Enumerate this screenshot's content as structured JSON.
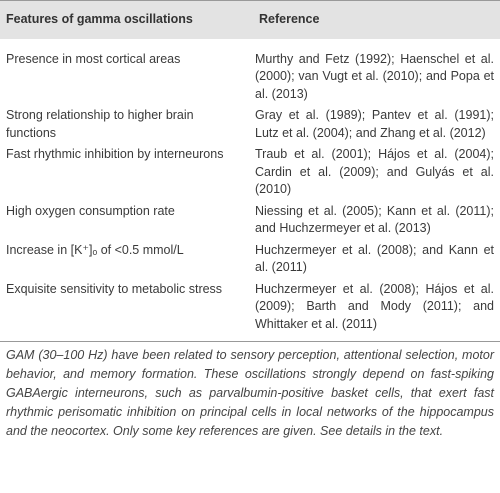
{
  "table": {
    "header": [
      "Features of gamma oscillations",
      "Reference"
    ],
    "rows": [
      [
        "Presence in most cortical areas",
        "Murthy and Fetz (1992); Haenschel et al. (2000); van Vugt et al. (2010); and Popa et al. (2013)"
      ],
      [
        "Strong relationship to higher brain functions",
        "Gray et al. (1989); Pantev et al. (1991); Lutz et al. (2004); and Zhang et al. (2012)"
      ],
      [
        "Fast rhythmic inhibition by interneurons",
        "Traub et al. (2001); Hájos et al. (2004); Cardin et al. (2009); and Gulyás et al. (2010)"
      ],
      [
        "High oxygen consumption rate",
        "Niessing et al. (2005); Kann et al. (2011); and Huchzermeyer et al. (2013)"
      ],
      [
        "Increase in [K⁺]ₒ of <0.5 mmol/L",
        "Huchzermeyer et al. (2008); and Kann et al. (2011)"
      ],
      [
        "Exquisite sensitivity to metabolic stress",
        "Huchzermeyer et al. (2008); Hájos et al. (2009); Barth and Mody (2011); and Whittaker et al. (2011)"
      ]
    ]
  },
  "footnote": "GAM (30–100 Hz) have been related to sensory perception, attentional selection, motor behavior, and memory formation. These oscillations strongly depend on fast-spiking GABAergic interneurons, such as parvalbumin-positive basket cells, that exert fast rhythmic perisomatic inhibition on principal cells in local networks of the hippocampus and the neocortex. Only some key references are given. See details in the text."
}
